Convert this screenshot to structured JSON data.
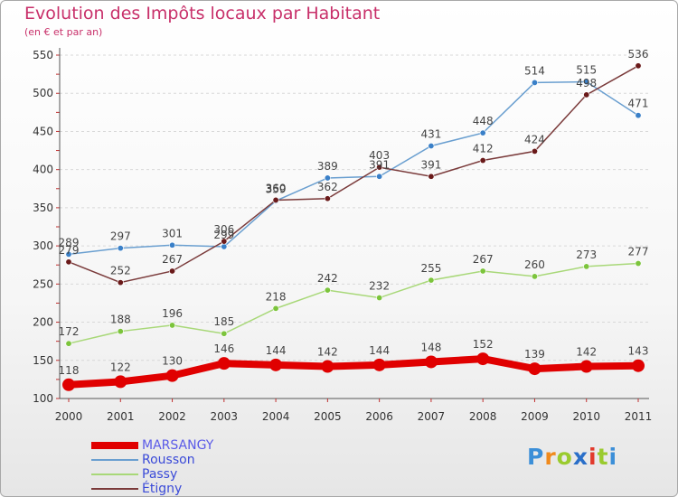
{
  "title": "Evolution des Impôts locaux par Habitant",
  "subtitle": "(en € et par an)",
  "logo": {
    "letters": [
      "P",
      "r",
      "o",
      "x",
      "i",
      "t",
      "i"
    ],
    "colors": [
      "#3c8fd8",
      "#f08a1c",
      "#9acb2e",
      "#2a6fc9",
      "#e23a2c",
      "#9acb2e",
      "#3c8fd8"
    ]
  },
  "colors": {
    "title": "#c8306a",
    "axis_text": "#333333",
    "grid": "#d8d8d8"
  },
  "chart_data": {
    "type": "line",
    "x": [
      "2000",
      "2001",
      "2002",
      "2003",
      "2004",
      "2005",
      "2006",
      "2007",
      "2008",
      "2009",
      "2010",
      "2011"
    ],
    "ylim": [
      100,
      550
    ],
    "yticks": [
      "100",
      "150",
      "200",
      "250",
      "300",
      "350",
      "400",
      "450",
      "500",
      "550"
    ],
    "grid": "horizontal dashed",
    "legend_position": "bottom-left",
    "series": [
      {
        "name": "MARSANGY",
        "color": "#e00000",
        "emphasis": true,
        "values": [
          118,
          122,
          130,
          146,
          144,
          142,
          144,
          148,
          152,
          139,
          142,
          143
        ]
      },
      {
        "name": "Rousson",
        "color": "#6a9fd0",
        "marker": "#3a80c8",
        "values": [
          289,
          297,
          301,
          299,
          359,
          389,
          391,
          431,
          448,
          514,
          515,
          471
        ]
      },
      {
        "name": "Passy",
        "color": "#a8d878",
        "marker": "#7cc43c",
        "values": [
          172,
          188,
          196,
          185,
          218,
          242,
          232,
          255,
          267,
          260,
          273,
          277
        ]
      },
      {
        "name": "Étigny",
        "color": "#7a3a3a",
        "marker": "#6a1a1a",
        "values": [
          279,
          252,
          267,
          306,
          360,
          362,
          403,
          391,
          412,
          424,
          498,
          536
        ]
      }
    ]
  }
}
